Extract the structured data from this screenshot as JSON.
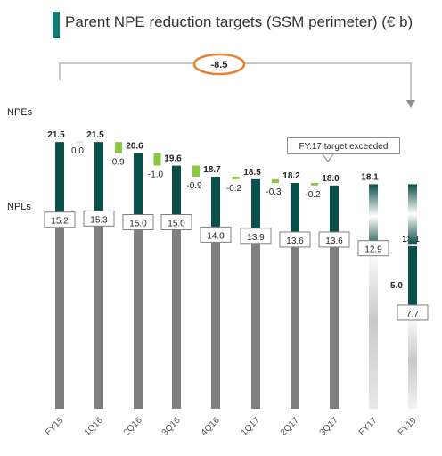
{
  "title": "Parent NPE reduction targets (SSM perimeter) (€ b)",
  "row_labels": {
    "npe": "NPEs",
    "npl": "NPLs"
  },
  "total_reduction_label": "-8.5",
  "callout": "FY.17 target exceeded",
  "colors": {
    "accent": "#0e7c72",
    "npe_bar": "#0b4f4a",
    "npl_bar": "#7f7f7f",
    "reduction": "#8dc63f",
    "highlight": "#ed7d31",
    "text": "#222222"
  },
  "chart_data": {
    "type": "bar",
    "title": "Parent NPE reduction targets (SSM perimeter) (€ b)",
    "categories": [
      "FY15",
      "1Q16",
      "2Q16",
      "3Q16",
      "4Q16",
      "1Q17",
      "2Q17",
      "3Q17",
      "FY17",
      "FY19"
    ],
    "series": [
      {
        "name": "NPEs",
        "values": [
          21.5,
          21.5,
          20.6,
          19.6,
          18.7,
          18.5,
          18.2,
          18.0,
          18.1,
          13.1
        ]
      },
      {
        "name": "NPLs",
        "values": [
          15.2,
          15.3,
          15.0,
          15.0,
          14.0,
          13.9,
          13.6,
          13.6,
          12.9,
          7.7
        ]
      }
    ],
    "changes": [
      {
        "after": "FY15",
        "value": "0.0"
      },
      {
        "after": "1Q16",
        "value": "-0.9"
      },
      {
        "after": "2Q16",
        "value": "-1.0"
      },
      {
        "after": "3Q16",
        "value": "-0.9"
      },
      {
        "after": "4Q16",
        "value": "-0.2"
      },
      {
        "after": "1Q17",
        "value": "-0.3"
      },
      {
        "after": "2Q17",
        "value": "-0.2"
      }
    ],
    "fy19_npe_gap_label": "5.0",
    "projected": [
      "FY17",
      "FY19"
    ]
  }
}
